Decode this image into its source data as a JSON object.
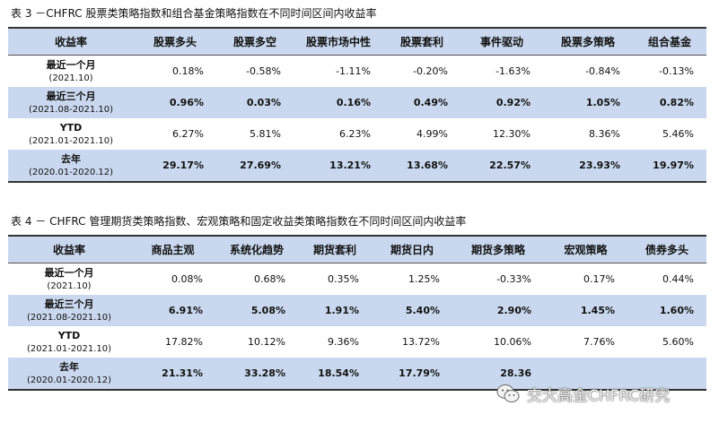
{
  "table3": {
    "title": "表 3 －CHFRC 股票类策略指数和组合基金策略指数在不同时间区间内收益率",
    "headers": [
      "收益率",
      "股票多头",
      "股票多空",
      "股票市场中性",
      "股票套利",
      "事件驱动",
      "股票多策略",
      "组合基金"
    ],
    "rows": [
      {
        "label": "最近一个月",
        "sub": "(2021.10)",
        "values": [
          "0.18%",
          "-0.58%",
          "-1.11%",
          "-0.20%",
          "-1.63%",
          "-0.84%",
          "-0.13%"
        ]
      },
      {
        "label": "最近三个月",
        "sub": "(2021.08-2021.10)",
        "values": [
          "0.96%",
          "0.03%",
          "0.16%",
          "0.49%",
          "0.92%",
          "1.05%",
          "0.82%"
        ]
      },
      {
        "label": "YTD",
        "sub": "(2021.01-2021.10)",
        "values": [
          "6.27%",
          "5.81%",
          "6.23%",
          "4.99%",
          "12.30%",
          "8.36%",
          "5.46%"
        ]
      },
      {
        "label": "去年",
        "sub": "(2020.01-2020.12)",
        "values": [
          "29.17%",
          "27.69%",
          "13.21%",
          "13.68%",
          "22.57%",
          "23.93%",
          "19.97%"
        ]
      }
    ]
  },
  "table4": {
    "title": "表 4 － CHFRC 管理期货类策略指数、宏观策略和固定收益类策略指数在不同时间区间内收益率",
    "headers": [
      "收益率",
      "商品主观",
      "系统化趋势",
      "期货套利",
      "期货日内",
      "期货多策略",
      "宏观策略",
      "债券多头"
    ],
    "rows": [
      {
        "label": "最近一个月",
        "sub": "(2021.10)",
        "values": [
          "0.08%",
          "0.68%",
          "0.35%",
          "1.25%",
          "-0.33%",
          "0.17%",
          "0.44%"
        ]
      },
      {
        "label": "最近三个月",
        "sub": "(2021.08-2021.10)",
        "values": [
          "6.91%",
          "5.08%",
          "1.91%",
          "5.40%",
          "2.90%",
          "1.45%",
          "1.60%"
        ]
      },
      {
        "label": "YTD",
        "sub": "(2021.01-2021.10)",
        "values": [
          "17.82%",
          "10.12%",
          "9.36%",
          "13.72%",
          "10.06%",
          "7.76%",
          "5.60%"
        ]
      },
      {
        "label": "去年",
        "sub": "(2020.01-2020.12)",
        "values": [
          "21.31%",
          "33.28%",
          "18.54%",
          "17.79%",
          "28.36",
          "",
          ""
        ]
      }
    ]
  },
  "watermark": {
    "text": "交大高金CHFRC研究",
    "icon": "wechat-icon"
  }
}
